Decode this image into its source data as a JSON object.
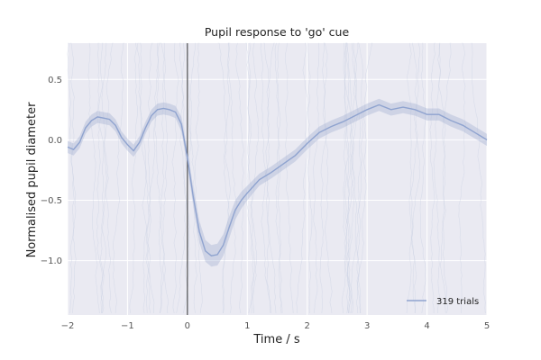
{
  "chart_data": {
    "type": "line",
    "title": "Pupil response to 'go' cue",
    "xlabel": "Time / s",
    "ylabel": "Normalised pupil diameter",
    "xlim": [
      -2,
      5
    ],
    "ylim": [
      -1.45,
      0.8
    ],
    "xticks": [
      -2,
      -1,
      0,
      1,
      2,
      3,
      4,
      5
    ],
    "xtick_labels": [
      "−2",
      "−1",
      "0",
      "1",
      "2",
      "3",
      "4",
      "5"
    ],
    "yticks": [
      0.5,
      0.0,
      -0.5,
      -1.0
    ],
    "ytick_labels": [
      "0.5",
      "0.0",
      "−0.5",
      "−1.0"
    ],
    "grid": true,
    "event_marker_x": 0,
    "legend": {
      "location": "lower-right",
      "entries": [
        "319 trials"
      ]
    },
    "series": [
      {
        "name": "319 trials",
        "color": "#8fa3cf",
        "band_color": "#9aa9cf",
        "x": [
          -2.0,
          -1.9,
          -1.8,
          -1.7,
          -1.6,
          -1.5,
          -1.4,
          -1.3,
          -1.2,
          -1.1,
          -1.0,
          -0.9,
          -0.8,
          -0.7,
          -0.6,
          -0.5,
          -0.4,
          -0.3,
          -0.2,
          -0.1,
          0.0,
          0.1,
          0.2,
          0.3,
          0.4,
          0.5,
          0.6,
          0.7,
          0.8,
          0.9,
          1.0,
          1.2,
          1.4,
          1.6,
          1.8,
          2.0,
          2.2,
          2.4,
          2.6,
          2.8,
          3.0,
          3.2,
          3.4,
          3.6,
          3.8,
          4.0,
          4.2,
          4.4,
          4.6,
          4.8,
          5.0
        ],
        "y": [
          -0.06,
          -0.08,
          -0.02,
          0.1,
          0.16,
          0.19,
          0.18,
          0.17,
          0.12,
          0.02,
          -0.04,
          -0.09,
          -0.02,
          0.1,
          0.2,
          0.25,
          0.26,
          0.25,
          0.23,
          0.13,
          -0.15,
          -0.48,
          -0.76,
          -0.92,
          -0.96,
          -0.95,
          -0.87,
          -0.72,
          -0.58,
          -0.5,
          -0.44,
          -0.33,
          -0.27,
          -0.2,
          -0.13,
          -0.03,
          0.06,
          0.11,
          0.15,
          0.2,
          0.25,
          0.29,
          0.25,
          0.27,
          0.25,
          0.21,
          0.21,
          0.16,
          0.12,
          0.06,
          0.0
        ],
        "ci_halfwidth": [
          0.05,
          0.05,
          0.05,
          0.05,
          0.05,
          0.05,
          0.05,
          0.05,
          0.05,
          0.05,
          0.05,
          0.05,
          0.05,
          0.05,
          0.05,
          0.05,
          0.05,
          0.05,
          0.05,
          0.06,
          0.07,
          0.08,
          0.09,
          0.09,
          0.09,
          0.09,
          0.09,
          0.09,
          0.08,
          0.07,
          0.06,
          0.05,
          0.05,
          0.05,
          0.05,
          0.05,
          0.05,
          0.05,
          0.05,
          0.05,
          0.05,
          0.05,
          0.05,
          0.05,
          0.05,
          0.05,
          0.05,
          0.05,
          0.05,
          0.05,
          0.05
        ]
      }
    ]
  }
}
